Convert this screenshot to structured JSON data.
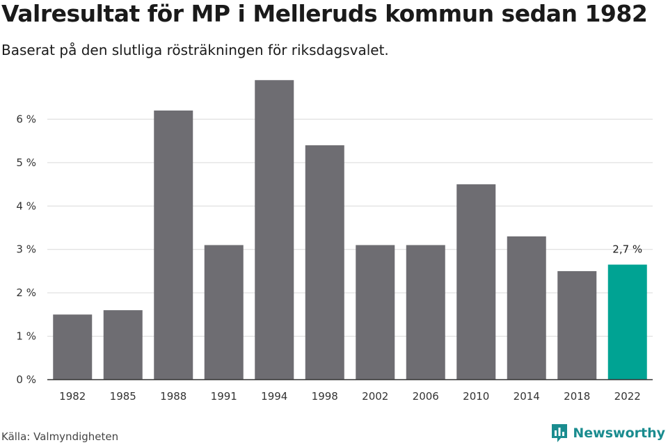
{
  "title": "Valresultat för MP i Melleruds kommun sedan 1982",
  "subtitle": "Baserat på den slutliga rösträkningen för riksdagsvalet.",
  "source": "Källa: Valmyndigheten",
  "brand": "Newsworthy",
  "colors": {
    "bar": "#6e6d72",
    "highlight": "#00a393",
    "grid": "#d9d9d9",
    "axis": "#333333",
    "brand": "#1a8c8f"
  },
  "chart_data": {
    "type": "bar",
    "categories": [
      "1982",
      "1985",
      "1988",
      "1991",
      "1994",
      "1998",
      "2002",
      "2006",
      "2010",
      "2014",
      "2018",
      "2022"
    ],
    "values": [
      1.5,
      1.6,
      6.2,
      3.1,
      6.9,
      5.4,
      3.1,
      3.1,
      4.5,
      3.3,
      2.5,
      2.65
    ],
    "highlight_index": 11,
    "data_labels": [
      {
        "index": 11,
        "text": "2,7 %"
      }
    ],
    "yticks": [
      0,
      1,
      2,
      3,
      4,
      5,
      6
    ],
    "ytick_labels": [
      "0 %",
      "1 %",
      "2 %",
      "3 %",
      "4 %",
      "5 %",
      "6 %"
    ],
    "ylim": [
      0,
      7
    ],
    "grid": true,
    "legend": "none"
  }
}
